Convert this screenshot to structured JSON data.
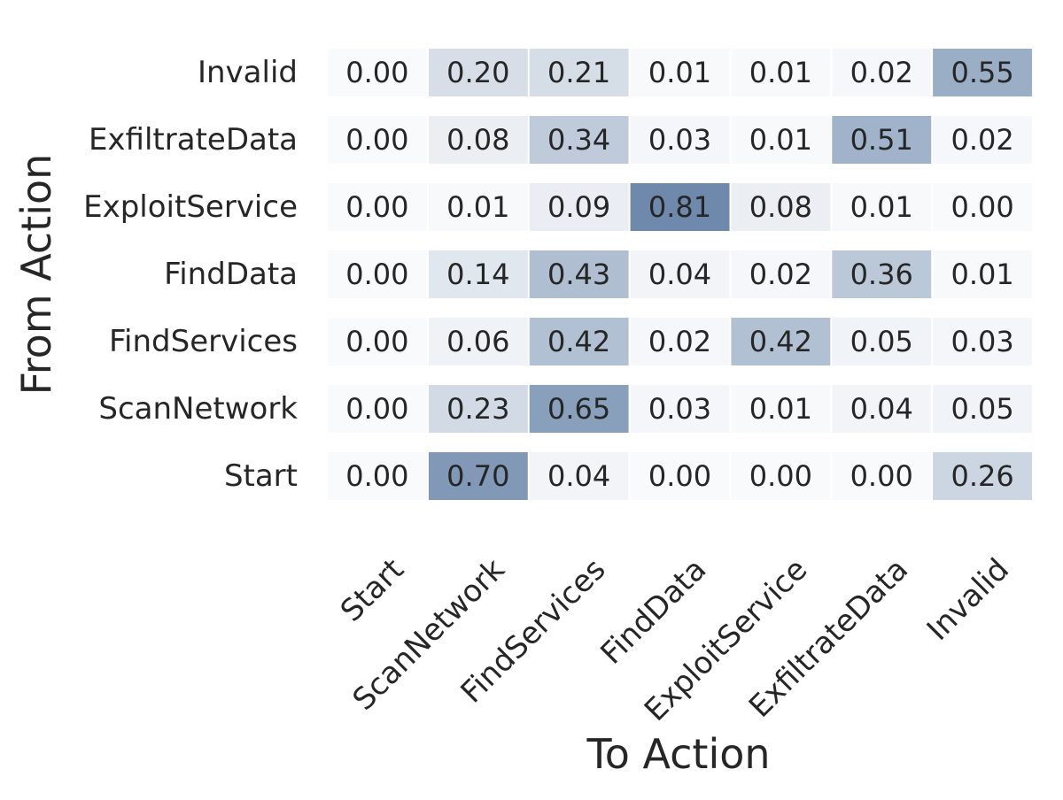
{
  "chart_data": {
    "type": "heatmap",
    "xlabel": "To Action",
    "ylabel": "From Action",
    "x_categories": [
      "Start",
      "ScanNetwork",
      "FindServices",
      "FindData",
      "ExploitService",
      "ExfiltrateData",
      "Invalid"
    ],
    "y_categories": [
      "Invalid",
      "ExfiltrateData",
      "ExploitService",
      "FindData",
      "FindServices",
      "ScanNetwork",
      "Start"
    ],
    "values": [
      [
        0.0,
        0.2,
        0.21,
        0.01,
        0.01,
        0.02,
        0.55
      ],
      [
        0.0,
        0.08,
        0.34,
        0.03,
        0.01,
        0.51,
        0.02
      ],
      [
        0.0,
        0.01,
        0.09,
        0.81,
        0.08,
        0.01,
        0.0
      ],
      [
        0.0,
        0.14,
        0.43,
        0.04,
        0.02,
        0.36,
        0.01
      ],
      [
        0.0,
        0.06,
        0.42,
        0.02,
        0.42,
        0.05,
        0.03
      ],
      [
        0.0,
        0.23,
        0.65,
        0.03,
        0.01,
        0.04,
        0.05
      ],
      [
        0.0,
        0.7,
        0.04,
        0.0,
        0.0,
        0.0,
        0.26
      ]
    ],
    "value_range": [
      0,
      1
    ],
    "colorscale": {
      "low": "#f9fafc",
      "high": "#4d6f99"
    },
    "number_format": "2 decimals"
  }
}
